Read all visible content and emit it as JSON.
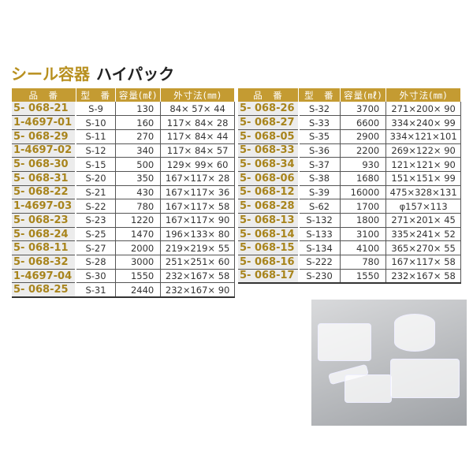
{
  "title": {
    "category": "シール容器",
    "product": "ハイパック"
  },
  "headers": [
    "品　番",
    "型　番",
    "容量(㎖)",
    "外寸法(㎜)"
  ],
  "left_rows": [
    [
      "5- 068-21",
      "S-9",
      "130",
      "84× 57× 44"
    ],
    [
      "1-4697-01",
      "S-10",
      "160",
      "117× 84× 28"
    ],
    [
      "5- 068-29",
      "S-11",
      "270",
      "117× 84× 44"
    ],
    [
      "1-4697-02",
      "S-12",
      "340",
      "117× 84× 57"
    ],
    [
      "5- 068-30",
      "S-15",
      "500",
      "129× 99× 60"
    ],
    [
      "5- 068-31",
      "S-20",
      "350",
      "167×117× 28"
    ],
    [
      "5- 068-22",
      "S-21",
      "430",
      "167×117× 36"
    ],
    [
      "1-4697-03",
      "S-22",
      "780",
      "167×117× 58"
    ],
    [
      "5- 068-23",
      "S-23",
      "1220",
      "167×117× 90"
    ],
    [
      "5- 068-24",
      "S-25",
      "1470",
      "196×133× 80"
    ],
    [
      "5- 068-11",
      "S-27",
      "2000",
      "219×219× 55"
    ],
    [
      "5- 068-32",
      "S-28",
      "3000",
      "251×251× 60"
    ],
    [
      "1-4697-04",
      "S-30",
      "1550",
      "232×167× 58"
    ],
    [
      "5- 068-25",
      "S-31",
      "2440",
      "232×167× 90"
    ]
  ],
  "right_rows": [
    [
      "5- 068-26",
      "S-32",
      "3700",
      "271×200× 90"
    ],
    [
      "5- 068-27",
      "S-33",
      "6600",
      "334×240× 99"
    ],
    [
      "5- 068-05",
      "S-35",
      "2900",
      "334×121×101"
    ],
    [
      "5- 068-33",
      "S-36",
      "2200",
      "269×122× 90"
    ],
    [
      "5- 068-34",
      "S-37",
      "930",
      "121×121× 90"
    ],
    [
      "5- 068-06",
      "S-38",
      "1680",
      "151×151× 99"
    ],
    [
      "5- 068-12",
      "S-39",
      "16000",
      "475×328×131"
    ],
    [
      "5- 068-28",
      "S-62",
      "1700",
      "φ157×113"
    ],
    [
      "5- 068-13",
      "S-132",
      "1800",
      "271×201× 45"
    ],
    [
      "5- 068-14",
      "S-133",
      "3100",
      "335×241× 52"
    ],
    [
      "5- 068-15",
      "S-134",
      "4100",
      "365×270× 55"
    ],
    [
      "5- 068-16",
      "S-222",
      "780",
      "167×117× 58"
    ],
    [
      "5- 068-17",
      "S-230",
      "1550",
      "232×167× 58"
    ]
  ],
  "colors": {
    "gold": "#c49b32",
    "code_text": "#a8841c"
  }
}
